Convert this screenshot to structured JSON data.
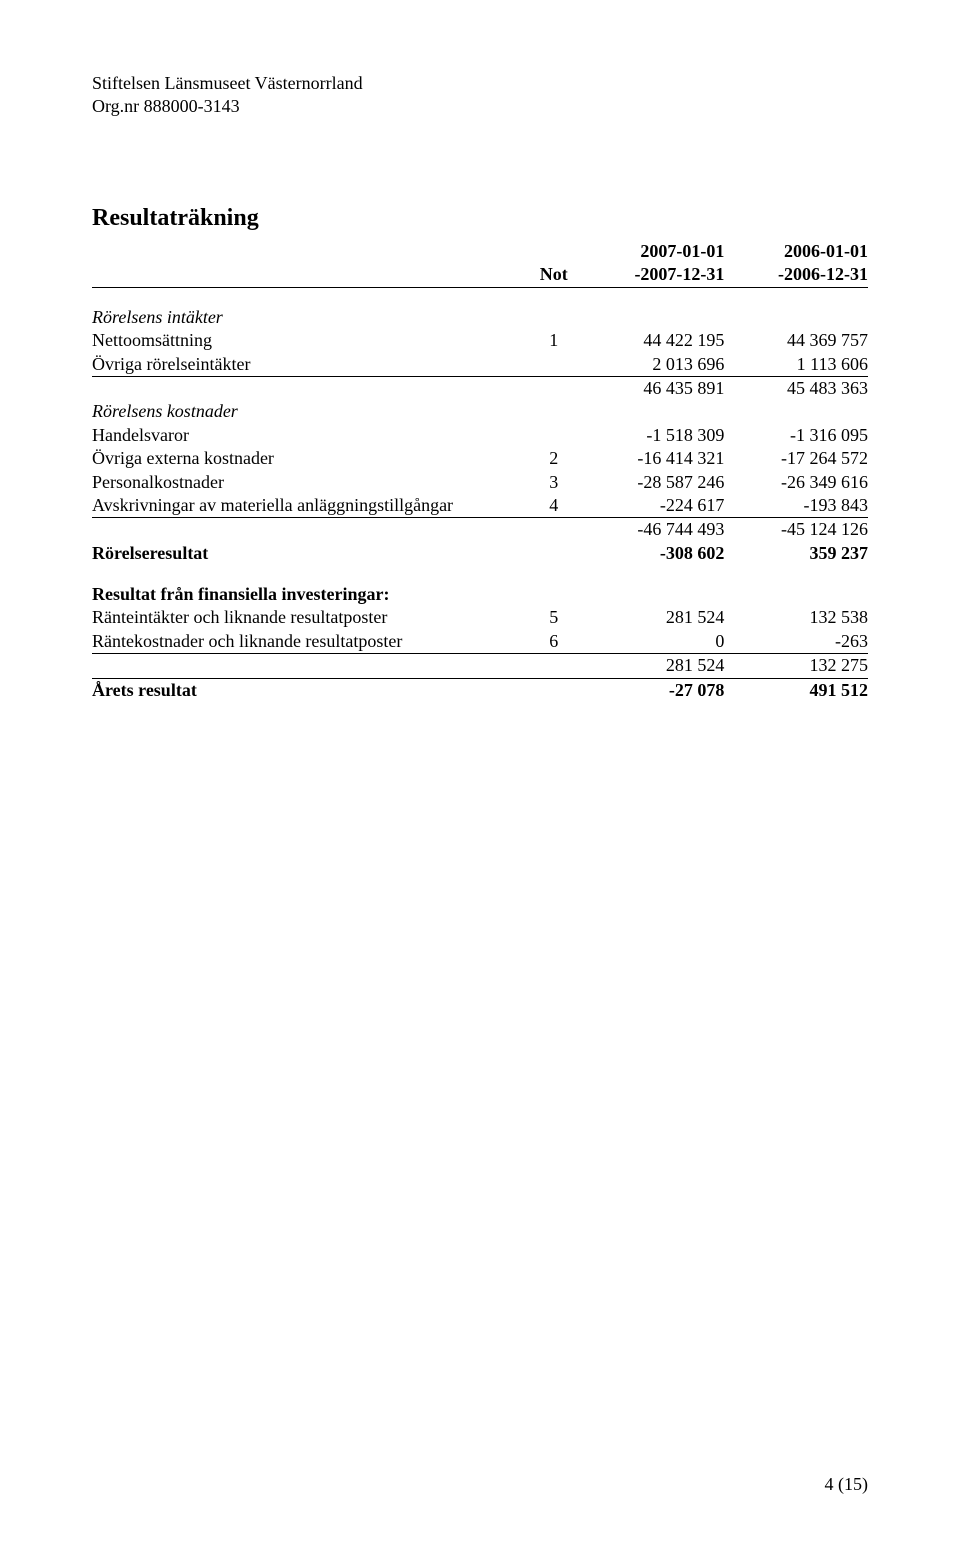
{
  "header": {
    "company": "Stiftelsen Länsmuseet Västernorrland",
    "orgnr": "Org.nr 888000-3143"
  },
  "title": "Resultaträkning",
  "columns": {
    "not": "Not",
    "c1_top": "2007-01-01",
    "c1_bot": "-2007-12-31",
    "c2_top": "2006-01-01",
    "c2_bot": "-2006-12-31"
  },
  "rows": {
    "sec1_head": "Rörelsens intäkter",
    "r1": {
      "label": "Nettoomsättning",
      "not": "1",
      "c1": "44 422 195",
      "c2": "44 369 757"
    },
    "r2": {
      "label": "Övriga rörelseintäkter",
      "c1": "2 013 696",
      "c2": "1 113 606"
    },
    "r3": {
      "c1": "46 435 891",
      "c2": "45 483 363"
    },
    "sec2_head": "Rörelsens kostnader",
    "r4": {
      "label": "Handelsvaror",
      "c1": "-1 518 309",
      "c2": "-1 316 095"
    },
    "r5": {
      "label": "Övriga externa kostnader",
      "not": "2",
      "c1": "-16 414 321",
      "c2": "-17 264 572"
    },
    "r6": {
      "label": "Personalkostnader",
      "not": "3",
      "c1": "-28 587 246",
      "c2": "-26 349 616"
    },
    "r7": {
      "label": "Avskrivningar av materiella anläggningstillgångar",
      "not": "4",
      "c1": "-224 617",
      "c2": "-193 843"
    },
    "r8": {
      "c1": "-46 744 493",
      "c2": "-45 124 126"
    },
    "r9": {
      "label": "Rörelseresultat",
      "c1": "-308 602",
      "c2": "359 237"
    },
    "sec3_head": "Resultat från finansiella investeringar:",
    "r10": {
      "label": "Ränteintäkter och liknande resultatposter",
      "not": "5",
      "c1": "281 524",
      "c2": "132 538"
    },
    "r11": {
      "label": "Räntekostnader och liknande resultatposter",
      "not": "6",
      "c1": "0",
      "c2": "-263"
    },
    "r12": {
      "c1": "281 524",
      "c2": "132 275"
    },
    "r13": {
      "label": "Årets resultat",
      "c1": "-27 078",
      "c2": "491 512"
    }
  },
  "footer": "4  (15)"
}
